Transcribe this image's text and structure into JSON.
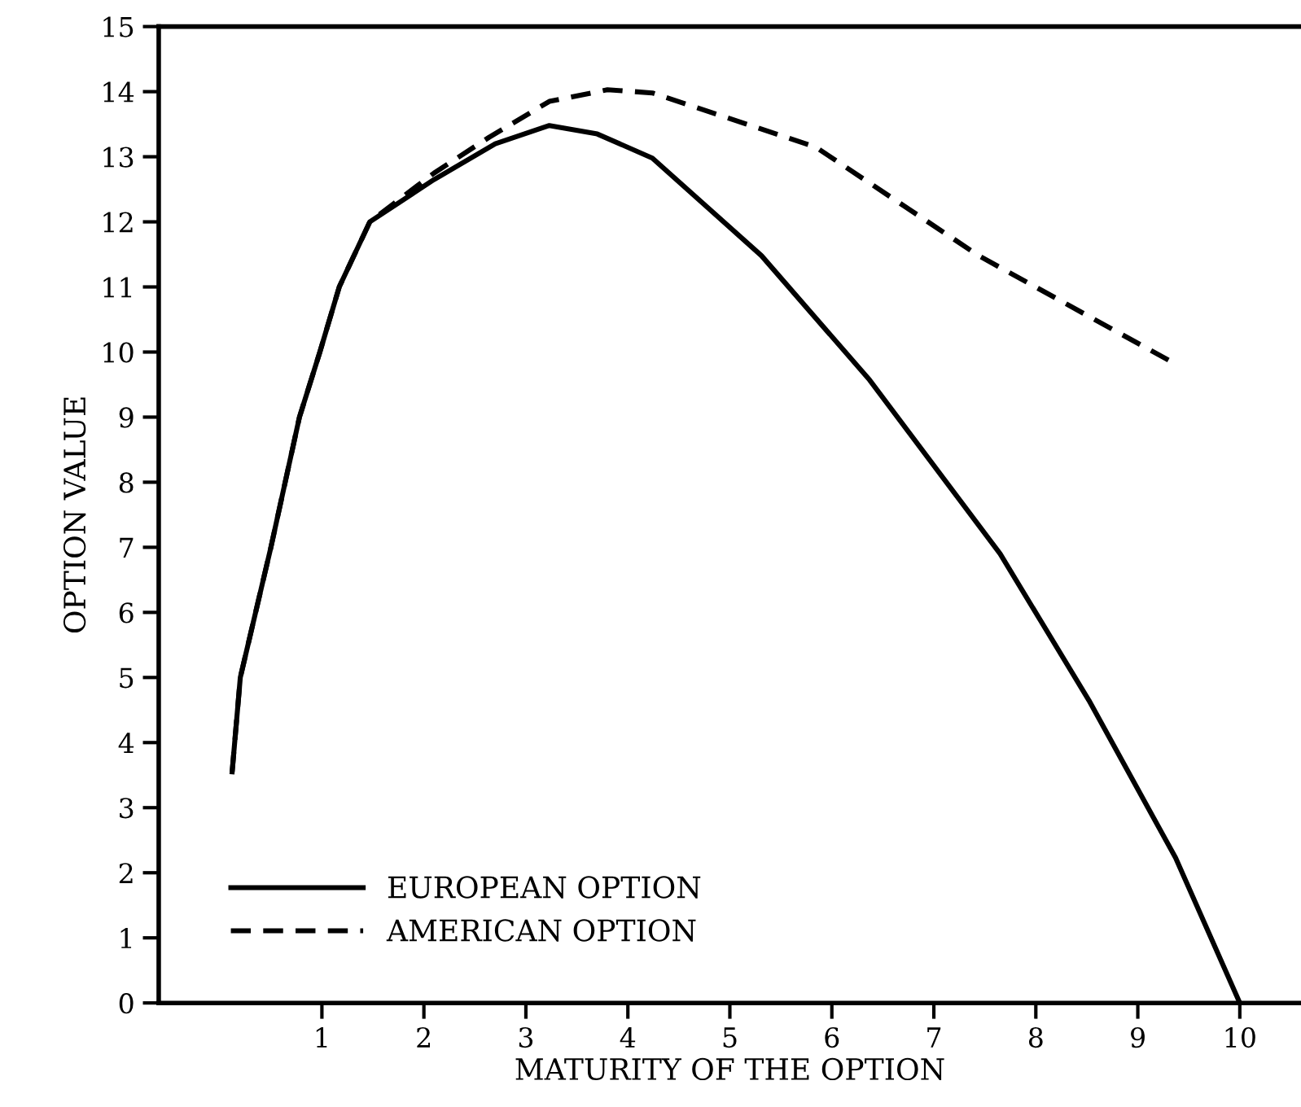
{
  "chart_data": {
    "type": "line",
    "xlabel": "MATURITY OF THE OPTION",
    "ylabel": "OPTION VALUE",
    "xlim": [
      -0.6,
      10.6
    ],
    "ylim": [
      0,
      15
    ],
    "xticks": [
      1,
      2,
      3,
      4,
      5,
      6,
      7,
      8,
      9,
      10
    ],
    "yticks": [
      0,
      1,
      2,
      3,
      4,
      5,
      6,
      7,
      8,
      9,
      10,
      11,
      12,
      13,
      14,
      15
    ],
    "grid": false,
    "legend": "bottom left",
    "series": [
      {
        "name": "EUROPEAN OPTION",
        "color": "#000000",
        "line_style": "solid",
        "x": [
          0.12,
          0.2,
          0.35,
          0.5,
          0.78,
          0.98,
          1.17,
          1.47,
          2.1,
          2.7,
          3.23,
          3.7,
          4.24,
          5.31,
          6.37,
          7.65,
          8.52,
          9.37,
          10.0
        ],
        "values": [
          3.55,
          5.0,
          6.0,
          7.0,
          9.0,
          10.0,
          11.0,
          12.0,
          12.65,
          13.2,
          13.48,
          13.35,
          12.98,
          11.48,
          9.57,
          6.9,
          4.65,
          2.23,
          0
        ]
      },
      {
        "name": "AMERICAN OPTION",
        "color": "#000000",
        "line_style": "dashed",
        "x": [
          0.12,
          0.2,
          0.35,
          0.5,
          0.78,
          0.98,
          1.17,
          1.47,
          2.1,
          2.64,
          3.23,
          3.8,
          4.24,
          5.84,
          7.44,
          9.33
        ],
        "values": [
          3.55,
          5.0,
          6.0,
          7.0,
          9.0,
          10.0,
          11.0,
          12.0,
          12.75,
          13.3,
          13.85,
          14.03,
          13.98,
          13.15,
          11.48,
          9.85
        ]
      }
    ]
  }
}
